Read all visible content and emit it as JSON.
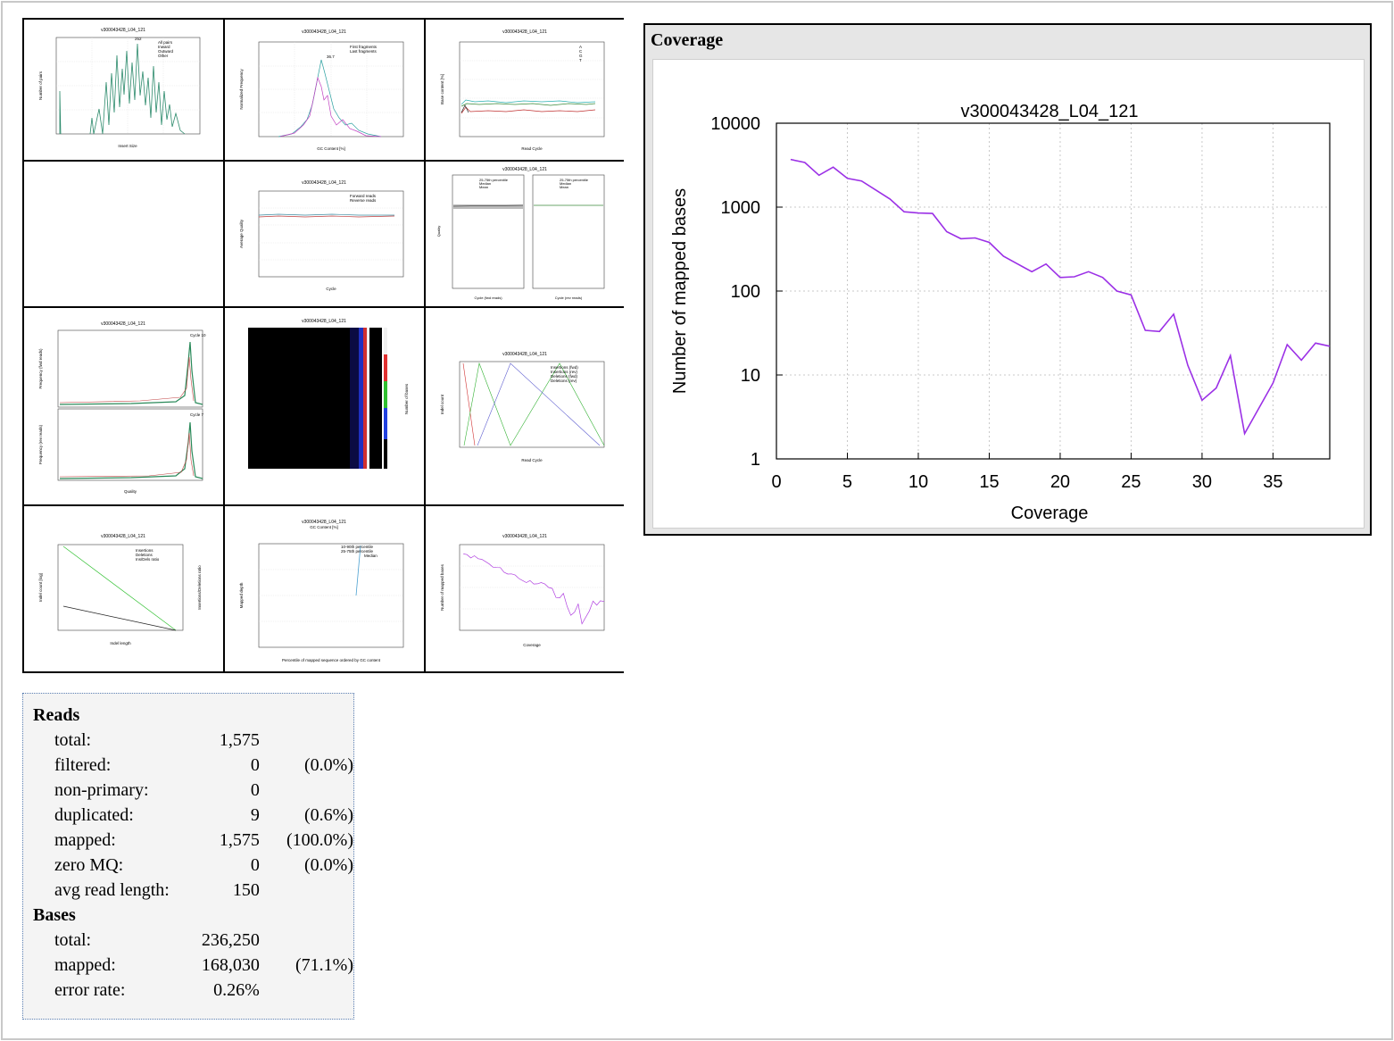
{
  "plot_title": "v300043428_L04_121",
  "thumbnails": {
    "insert_size": {
      "legend": [
        "All pairs",
        "Inward",
        "Outward",
        "Other"
      ],
      "xlabel": "Insert Size",
      "ylabel": "Number of pairs",
      "peak": "252"
    },
    "gc_content": {
      "legend": [
        "First fragments",
        "Last fragments"
      ],
      "xlabel": "GC Content [%]",
      "ylabel": "Normalized Frequency",
      "peak": "36.7"
    },
    "acgt": {
      "legend": [
        "A",
        "C",
        "G",
        "T"
      ],
      "xlabel": "Read Cycle",
      "ylabel": "Base content [%]"
    },
    "quality": {
      "legend": [
        "Forward reads",
        "Reverse reads"
      ],
      "xlabel": "Cycle",
      "ylabel": "Average Quality"
    },
    "quality_dist": {
      "legend": [
        "25-75th percentile",
        "Median",
        "Mean"
      ],
      "xlabel_left": "Cycle (fwd reads)",
      "xlabel_right": "Cycle (rev reads)",
      "ylabel": "Quality"
    },
    "quality_freq": {
      "xlabel": "Quality",
      "ylabel_top": "Frequency (fwd reads)",
      "ylabel_bottom": "Frequency (rev reads)",
      "tag_top": "Cycle 10",
      "tag_bottom": "Cycle 7"
    },
    "heatmap": {
      "ylabel": "Number of bases"
    },
    "indel_cycles": {
      "legend": [
        "Insertions (fwd)",
        "Insertions (rev)",
        "Deletions (fwd)",
        "Deletions (rev)"
      ],
      "xlabel": "Read Cycle",
      "ylabel": "Indel count"
    },
    "indel_dist": {
      "legend": [
        "Insertions",
        "Deletions",
        "Ins/Dels ratio"
      ],
      "xlabel": "Indel length",
      "ylabel": "Indel count [log]",
      "ylabel2": "Insertions/Deletions ratio"
    },
    "gc_depth": {
      "subtitle": "GC Content [%]",
      "legend": [
        "10-90th percentile",
        "25-75th percentile",
        "Median"
      ],
      "xlabel": "Percentile of mapped sequence ordered by GC content",
      "ylabel": "Mapped depth"
    },
    "coverage_small": {
      "xlabel": "Coverage",
      "ylabel": "Number of mapped bases"
    }
  },
  "coverage_panel": {
    "heading": "Coverage"
  },
  "chart_data": {
    "type": "line",
    "title": "v300043428_L04_121",
    "xlabel": "Coverage",
    "ylabel": "Number of mapped bases",
    "yscale": "log",
    "xlim": [
      0,
      39
    ],
    "ylim": [
      1,
      10000
    ],
    "x_ticks": [
      "0",
      "5",
      "10",
      "15",
      "20",
      "25",
      "30",
      "35"
    ],
    "y_ticks": [
      "1",
      "10",
      "100",
      "1000",
      "10000"
    ],
    "grid": true,
    "color": "#9b30e6",
    "x": [
      1,
      2,
      3,
      4,
      5,
      6,
      7,
      8,
      9,
      10,
      11,
      12,
      13,
      14,
      15,
      16,
      17,
      18,
      19,
      20,
      21,
      22,
      23,
      24,
      25,
      26,
      27,
      28,
      29,
      30,
      31,
      32,
      33,
      34,
      35,
      36,
      37,
      38,
      39
    ],
    "values": [
      3700,
      3400,
      2400,
      3000,
      2200,
      2050,
      1600,
      1250,
      880,
      850,
      840,
      510,
      420,
      430,
      380,
      260,
      210,
      170,
      210,
      145,
      148,
      170,
      145,
      100,
      90,
      34,
      33,
      53,
      13,
      5,
      7,
      17,
      2,
      4,
      8,
      23,
      15,
      24,
      22
    ]
  },
  "stats": {
    "reads_heading": "Reads",
    "reads": [
      {
        "label": "total:",
        "value": "1,575",
        "pct": ""
      },
      {
        "label": "filtered:",
        "value": "0",
        "pct": "(0.0%)"
      },
      {
        "label": "non-primary:",
        "value": "0",
        "pct": ""
      },
      {
        "label": "duplicated:",
        "value": "9",
        "pct": "(0.6%)"
      },
      {
        "label": "mapped:",
        "value": "1,575",
        "pct": "(100.0%)"
      },
      {
        "label": "zero MQ:",
        "value": "0",
        "pct": "(0.0%)"
      },
      {
        "label": "avg read length:",
        "value": "150",
        "pct": ""
      }
    ],
    "bases_heading": "Bases",
    "bases": [
      {
        "label": "total:",
        "value": "236,250",
        "pct": ""
      },
      {
        "label": "mapped:",
        "value": "168,030",
        "pct": "(71.1%)"
      },
      {
        "label": "error rate:",
        "value": "0.26%",
        "pct": ""
      }
    ]
  }
}
